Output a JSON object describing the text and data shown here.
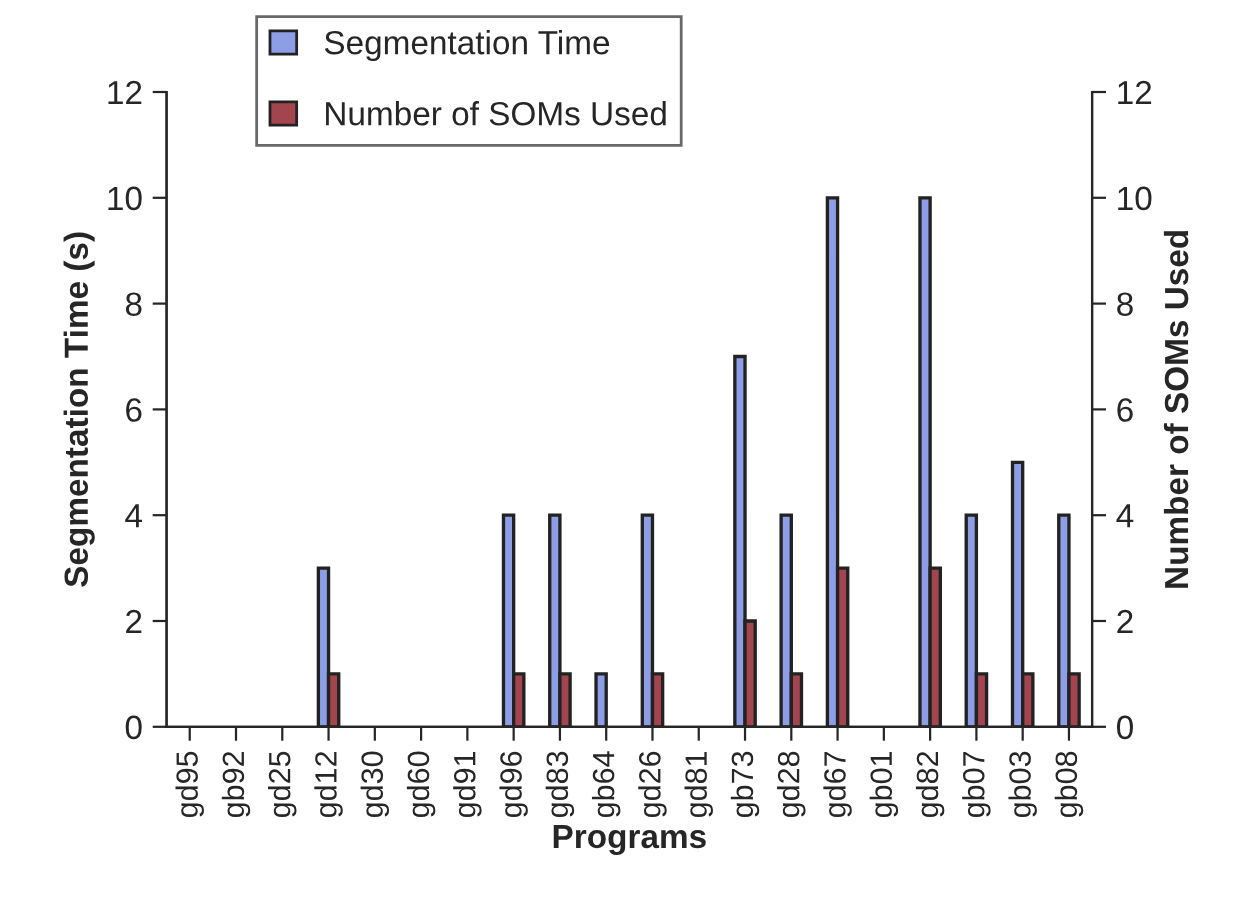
{
  "chart_data": {
    "type": "bar",
    "xlabel": "Programs",
    "ylabel": "Segmentation Time (s)",
    "y2label": "Number of SOMs Used",
    "categories": [
      "gd95",
      "gb92",
      "gd25",
      "gd12",
      "gd30",
      "gd60",
      "gd91",
      "gd96",
      "gd83",
      "gb64",
      "gd26",
      "gd81",
      "gb73",
      "gd28",
      "gd67",
      "gb01",
      "gd82",
      "gb07",
      "gb03",
      "gb08"
    ],
    "series": [
      {
        "name": "Segmentation Time",
        "color": "#8e9ee6",
        "values": [
          0,
          0,
          0,
          3,
          0,
          0,
          0,
          4,
          4,
          1,
          4,
          0,
          7,
          4,
          10,
          0,
          10,
          4,
          5,
          4
        ]
      },
      {
        "name": "Number of SOMs Used",
        "color": "#a3454f",
        "axis": "y2",
        "values": [
          0,
          0,
          0,
          1,
          0,
          0,
          0,
          1,
          1,
          0,
          1,
          0,
          2,
          1,
          3,
          0,
          3,
          1,
          1,
          1
        ]
      }
    ],
    "ylim": [
      0,
      12
    ],
    "yticks": [
      0,
      2,
      4,
      6,
      8,
      10,
      12
    ],
    "y2lim": [
      0,
      12
    ],
    "y2ticks": [
      0,
      2,
      4,
      6,
      8,
      10,
      12
    ],
    "grid": false,
    "legend": "top"
  }
}
